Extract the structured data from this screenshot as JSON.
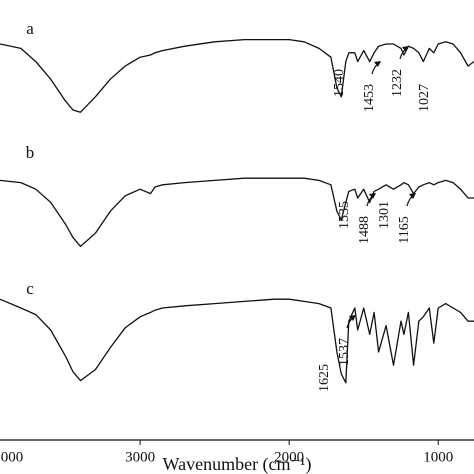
{
  "chart_data": {
    "type": "line",
    "x_label": "Wavenumber (cm⁻¹)",
    "x": [
      3940,
      3800,
      3700,
      3600,
      3500,
      3450,
      3400,
      3300,
      3200,
      3100,
      3000,
      2930,
      2900,
      2850,
      2700,
      2500,
      2300,
      2100,
      2000,
      1900,
      1800,
      1720,
      1680,
      1650,
      1620,
      1600,
      1560,
      1540,
      1500,
      1460,
      1430,
      1400,
      1350,
      1300,
      1250,
      1230,
      1200,
      1165,
      1130,
      1100,
      1060,
      1030,
      1000,
      950,
      900,
      850,
      800,
      760
    ],
    "xlim": [
      3940,
      760
    ],
    "xticks": [
      {
        "value": 4000,
        "label": "000"
      },
      3000,
      2000,
      1000
    ],
    "ylim": [
      0,
      100
    ],
    "grid": false,
    "series": [
      {
        "name": "a",
        "color": "#111111",
        "values": [
          90,
          89,
          86,
          82,
          77,
          75,
          74.5,
          78,
          82,
          85,
          87,
          87.5,
          88,
          88.5,
          89.5,
          90.5,
          91,
          91,
          91,
          90.5,
          89,
          87,
          80,
          78,
          86,
          88,
          88,
          86,
          88.5,
          86,
          88,
          89.5,
          90,
          90,
          89,
          87.5,
          89.5,
          89,
          88,
          86,
          89,
          88,
          90,
          90.5,
          90,
          88,
          85,
          86
        ]
      },
      {
        "name": "b",
        "color": "#111111",
        "values": [
          59,
          58.5,
          57,
          54,
          49,
          46,
          44,
          47,
          52,
          55.5,
          57,
          56,
          57.5,
          58,
          58.5,
          59,
          59.5,
          59.5,
          59.5,
          59.5,
          59,
          58,
          52,
          50,
          54,
          56.5,
          57,
          55,
          57,
          54,
          56.5,
          57,
          58,
          57,
          58,
          58.5,
          58,
          56,
          57.5,
          58,
          58.5,
          58,
          58.5,
          59,
          58.5,
          57,
          55,
          55
        ]
      },
      {
        "name": "c",
        "color": "#111111",
        "values": [
          32,
          30,
          28.5,
          25,
          19,
          15.5,
          13.5,
          16,
          21,
          25.5,
          28,
          29,
          29.5,
          30,
          30.5,
          31,
          31.5,
          32,
          32,
          31.5,
          31,
          30,
          20,
          15,
          13,
          27,
          30,
          25,
          30,
          24,
          29,
          20,
          26,
          17,
          27,
          24,
          29,
          17,
          27,
          28,
          30,
          22,
          30,
          31,
          30,
          29,
          27,
          27
        ]
      }
    ],
    "annotations": [
      {
        "text": "1540"
      },
      {
        "text": "1453"
      },
      {
        "text": "1232"
      },
      {
        "text": "1027"
      },
      {
        "text": "1535"
      },
      {
        "text": "1488"
      },
      {
        "text": "1301"
      },
      {
        "text": "1165"
      },
      {
        "text": "1625"
      },
      {
        "text": "1537"
      }
    ]
  }
}
